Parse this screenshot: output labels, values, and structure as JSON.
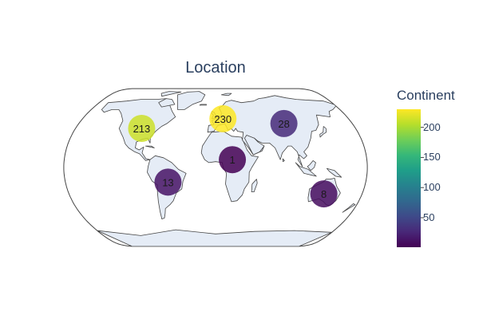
{
  "title": "Location",
  "colorbar": {
    "title": "Continent",
    "min": 1,
    "max": 230,
    "ticks": [
      50,
      100,
      150,
      200
    ],
    "colors": [
      "#440154",
      "#482878",
      "#3e4a89",
      "#31688e",
      "#26828e",
      "#1f9e89",
      "#35b779",
      "#6ece58",
      "#b5de2b",
      "#fde725"
    ]
  },
  "map_data": {
    "projection": "natural-earth",
    "land_color": "#e5ecf6",
    "coast_color": "#444444",
    "points": [
      {
        "label": "213",
        "value": 213,
        "lon": -95,
        "lat": 40
      },
      {
        "label": "230",
        "value": 230,
        "lon": 10,
        "lat": 50
      },
      {
        "label": "28",
        "value": 28,
        "lon": 90,
        "lat": 45
      },
      {
        "label": "1",
        "value": 1,
        "lon": 20,
        "lat": 8
      },
      {
        "label": "13",
        "value": 13,
        "lon": -57,
        "lat": -15
      },
      {
        "label": "8",
        "value": 8,
        "lon": 133,
        "lat": -27
      }
    ]
  }
}
